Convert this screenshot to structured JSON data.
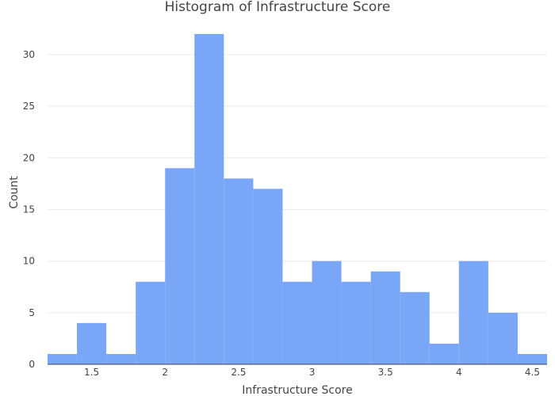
{
  "chart_data": {
    "type": "bar",
    "title": "Histogram of Infrastructure Score",
    "xlabel": "Infrastructure Score",
    "ylabel": "Count",
    "bin_width": 0.2,
    "bins": [
      {
        "x0": 1.2,
        "x1": 1.4,
        "count": 1
      },
      {
        "x0": 1.4,
        "x1": 1.6,
        "count": 4
      },
      {
        "x0": 1.6,
        "x1": 1.8,
        "count": 1
      },
      {
        "x0": 1.8,
        "x1": 2.0,
        "count": 8
      },
      {
        "x0": 2.0,
        "x1": 2.2,
        "count": 19
      },
      {
        "x0": 2.2,
        "x1": 2.4,
        "count": 32
      },
      {
        "x0": 2.4,
        "x1": 2.6,
        "count": 18
      },
      {
        "x0": 2.6,
        "x1": 2.8,
        "count": 17
      },
      {
        "x0": 2.8,
        "x1": 3.0,
        "count": 8
      },
      {
        "x0": 3.0,
        "x1": 3.2,
        "count": 10
      },
      {
        "x0": 3.2,
        "x1": 3.4,
        "count": 8
      },
      {
        "x0": 3.4,
        "x1": 3.6,
        "count": 9
      },
      {
        "x0": 3.6,
        "x1": 3.8,
        "count": 7
      },
      {
        "x0": 3.8,
        "x1": 4.0,
        "count": 2
      },
      {
        "x0": 4.0,
        "x1": 4.2,
        "count": 10
      },
      {
        "x0": 4.2,
        "x1": 4.4,
        "count": 5
      },
      {
        "x0": 4.4,
        "x1": 4.6,
        "count": 1
      }
    ],
    "xlim": [
      1.2,
      4.6
    ],
    "ylim": [
      0,
      33.68
    ],
    "x_ticks": [
      "1.5",
      "2",
      "2.5",
      "3",
      "3.5",
      "4",
      "4.5"
    ],
    "x_tick_values": [
      1.5,
      2,
      2.5,
      3,
      3.5,
      4,
      4.5
    ],
    "y_ticks": [
      "0",
      "5",
      "10",
      "15",
      "20",
      "25",
      "30"
    ],
    "y_tick_values": [
      0,
      5,
      10,
      15,
      20,
      25,
      30
    ],
    "grid": true,
    "bar_color": "#7aa6f7",
    "legend": "none"
  }
}
